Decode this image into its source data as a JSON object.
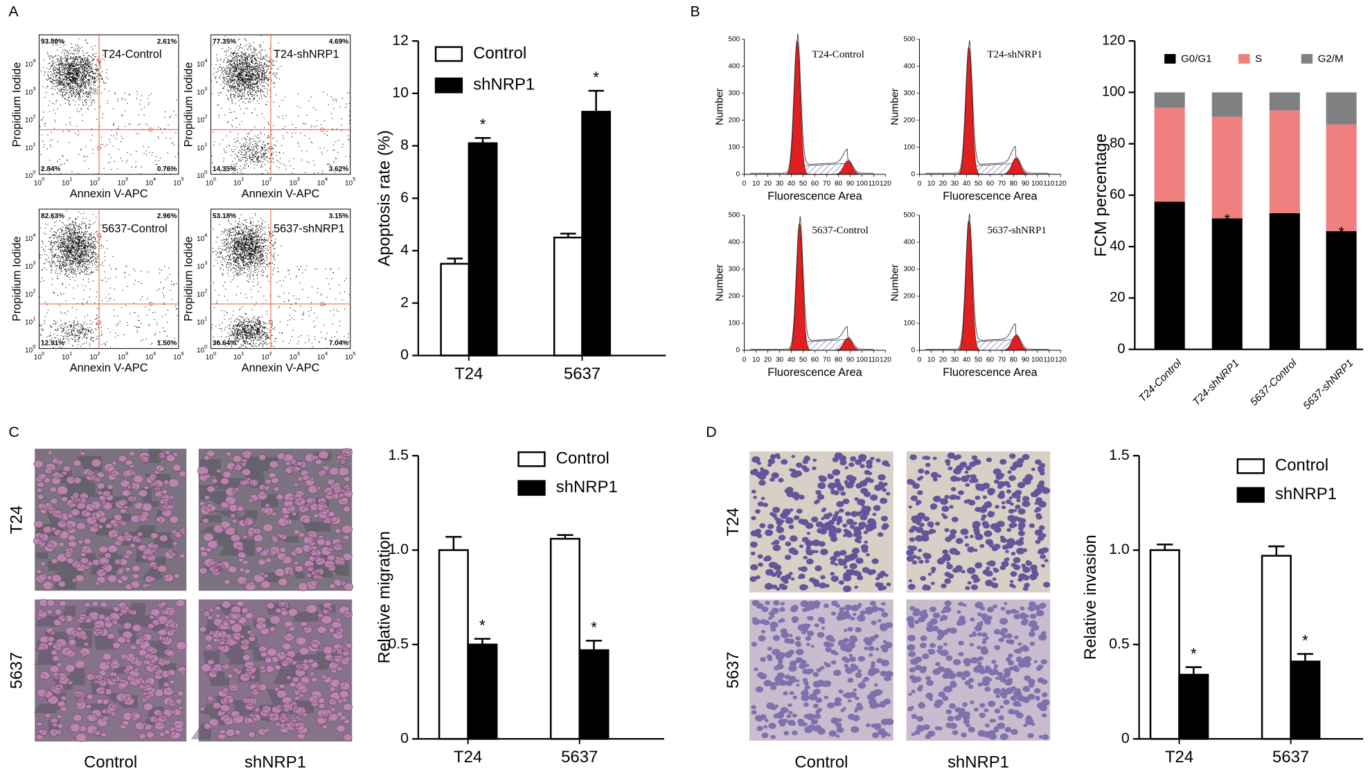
{
  "panel_labels": [
    "A",
    "B",
    "C",
    "D"
  ],
  "flow": {
    "xlabel": "Annexin V-APC",
    "ylabel": "Propidium Iodide",
    "ticks": [
      {
        "base": "10",
        "exp": "0"
      },
      {
        "base": "10",
        "exp": "1"
      },
      {
        "base": "10",
        "exp": "2"
      },
      {
        "base": "10",
        "exp": "3"
      },
      {
        "base": "10",
        "exp": "4"
      },
      {
        "base": "10",
        "exp": "5"
      }
    ],
    "plots": [
      {
        "title": "T24-Control",
        "quadrants": [
          "93.80%",
          "2.61%",
          "2.84%",
          "0.76%"
        ]
      },
      {
        "title": "T24-shNRP1",
        "quadrants": [
          "77.35%",
          "4.69%",
          "14.35%",
          "3.62%"
        ]
      },
      {
        "title": "5637-Control",
        "quadrants": [
          "82.63%",
          "2.96%",
          "12.91%",
          "1.50%"
        ]
      },
      {
        "title": "5637-shNRP1",
        "quadrants": [
          "53.18%",
          "3.15%",
          "36.64%",
          "7.04%"
        ]
      }
    ]
  },
  "cycle": {
    "xlabel": "Fluorescence Area",
    "ylabel": "Number",
    "xticks": [
      0,
      10,
      20,
      30,
      40,
      50,
      60,
      70,
      80,
      90,
      100,
      110,
      120
    ],
    "yticks": [
      0,
      100,
      200,
      300,
      400,
      500
    ],
    "plots": [
      "T24-Control",
      "T24-shNRP1",
      "5637-Control",
      "5637-shNRP1"
    ]
  },
  "micrographs": [
    {
      "rows": [
        "T24",
        "5637"
      ],
      "columns": [
        "Control",
        "shNRP1"
      ]
    },
    {
      "rows": [
        "T24",
        "5637"
      ],
      "columns": [
        "Control",
        "shNRP1"
      ]
    }
  ],
  "chart_data": [
    {
      "type": "bar",
      "ylabel": "Apoptosis rate (%)",
      "categories": [
        "T24",
        "5637"
      ],
      "series": [
        {
          "name": "Control",
          "color": "#ffffff",
          "values": [
            3.5,
            4.5
          ],
          "errors": [
            0.2,
            0.15
          ]
        },
        {
          "name": "shNRP1",
          "color": "#000000",
          "values": [
            8.1,
            9.3
          ],
          "errors": [
            0.2,
            0.8
          ]
        }
      ],
      "ylim": [
        0,
        12
      ],
      "yticks": [
        0,
        2,
        4,
        6,
        8,
        10,
        12
      ],
      "annotations": [
        {
          "text": "*",
          "series": 1,
          "index": 0
        },
        {
          "text": "*",
          "series": 1,
          "index": 1
        }
      ]
    },
    {
      "type": "stacked_bar",
      "ylabel": "FCM percentage",
      "categories": [
        "T24-Control",
        "T24-shNRP1",
        "5637-Control",
        "5637-shNRP1"
      ],
      "series": [
        {
          "name": "G0/G1",
          "color": "#000000",
          "values": [
            57.5,
            51,
            53,
            46
          ]
        },
        {
          "name": "S",
          "color": "#f08080",
          "values": [
            36.5,
            39.5,
            40,
            41.5
          ]
        },
        {
          "name": "G2/M",
          "color": "#808080",
          "values": [
            6,
            9.5,
            7,
            12.5
          ]
        }
      ],
      "ylim": [
        0,
        120
      ],
      "yticks": [
        0,
        20,
        40,
        60,
        80,
        100,
        120
      ],
      "annotations": [
        {
          "text": "*",
          "series": 0,
          "index": 1
        },
        {
          "text": "*",
          "series": 0,
          "index": 3
        }
      ]
    },
    {
      "type": "bar",
      "ylabel": "Relative migration",
      "categories": [
        "T24",
        "5637"
      ],
      "series": [
        {
          "name": "Control",
          "color": "#ffffff",
          "values": [
            1.0,
            1.06
          ],
          "errors": [
            0.07,
            0.02
          ]
        },
        {
          "name": "shNRP1",
          "color": "#000000",
          "values": [
            0.5,
            0.47
          ],
          "errors": [
            0.03,
            0.05
          ]
        }
      ],
      "ylim": [
        0,
        1.5
      ],
      "yticks": [
        0,
        0.5,
        {
          "value": 1,
          "label": "1.0"
        },
        1.5
      ],
      "annotations": [
        {
          "text": "*",
          "series": 1,
          "index": 0
        },
        {
          "text": "*",
          "series": 1,
          "index": 1
        }
      ]
    },
    {
      "type": "bar",
      "ylabel": "Relative invasion",
      "categories": [
        "T24",
        "5637"
      ],
      "series": [
        {
          "name": "Control",
          "color": "#ffffff",
          "values": [
            1.0,
            0.97
          ],
          "errors": [
            0.03,
            0.05
          ]
        },
        {
          "name": "shNRP1",
          "color": "#000000",
          "values": [
            0.34,
            0.41
          ],
          "errors": [
            0.04,
            0.04
          ]
        }
      ],
      "ylim": [
        0,
        1.5
      ],
      "yticks": [
        0,
        0.5,
        {
          "value": 1,
          "label": "1.0"
        },
        1.5
      ],
      "annotations": [
        {
          "text": "*",
          "series": 1,
          "index": 0
        },
        {
          "text": "*",
          "series": 1,
          "index": 1
        }
      ]
    }
  ]
}
